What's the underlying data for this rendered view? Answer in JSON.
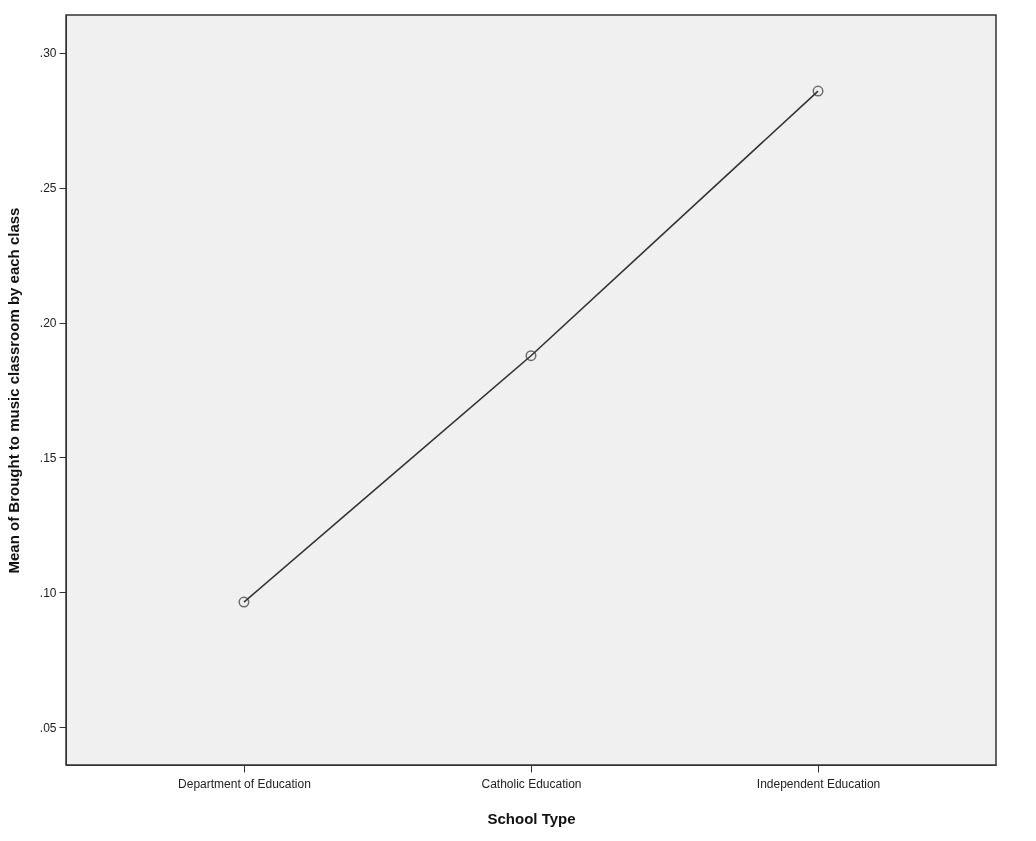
{
  "chart_data": {
    "type": "line",
    "xlabel": "School Type",
    "ylabel": "Mean of Brought to music classroom by each class",
    "categories": [
      "Department of Education",
      "Catholic Education",
      "Independent Education"
    ],
    "series": [
      {
        "color": "#333333",
        "values": [
          0.0964,
          0.1877,
          0.2858
        ]
      }
    ],
    "ylim": [
      0.036,
      0.314
    ],
    "yticks": [
      {
        "value": 0.05,
        "label": ".05"
      },
      {
        "value": 0.1,
        "label": ".10"
      },
      {
        "value": 0.15,
        "label": ".15"
      },
      {
        "value": 0.2,
        "label": ".20"
      },
      {
        "value": 0.25,
        "label": ".25"
      },
      {
        "value": 0.3,
        "label": ".30"
      }
    ],
    "grid": false,
    "legend": false,
    "marker": "circle",
    "line_style": "solid"
  }
}
